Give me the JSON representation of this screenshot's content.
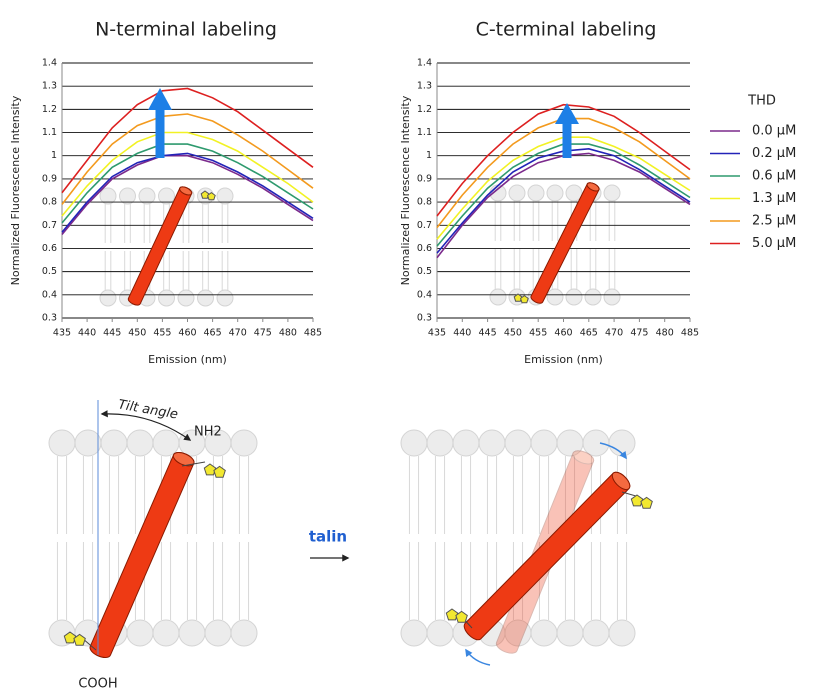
{
  "chart_data": [
    {
      "type": "line",
      "title": "N-terminal labeling",
      "x_label": "Emission (nm)",
      "y_label": "Normalized Fluorescence Intensity",
      "x": [
        435,
        440,
        445,
        450,
        455,
        460,
        465,
        470,
        475,
        480,
        485
      ],
      "xlim": [
        435,
        485
      ],
      "xticks": [
        435,
        440,
        445,
        450,
        455,
        460,
        465,
        470,
        475,
        480,
        485
      ],
      "ylim": [
        0.3,
        1.4
      ],
      "yticks": [
        0.3,
        0.4,
        0.5,
        0.6,
        0.7,
        0.8,
        0.9,
        1,
        1.1,
        1.2,
        1.3,
        1.4
      ],
      "grid": true,
      "series": [
        {
          "color": "#7b2a8c",
          "values": [
            0.66,
            0.79,
            0.9,
            0.96,
            1.0,
            1.0,
            0.97,
            0.92,
            0.86,
            0.79,
            0.72
          ]
        },
        {
          "color": "#2323b8",
          "values": [
            0.67,
            0.8,
            0.91,
            0.97,
            1.0,
            1.01,
            0.98,
            0.93,
            0.87,
            0.8,
            0.73
          ]
        },
        {
          "color": "#2e9a6e",
          "values": [
            0.71,
            0.84,
            0.95,
            1.01,
            1.05,
            1.05,
            1.02,
            0.97,
            0.91,
            0.84,
            0.77
          ]
        },
        {
          "color": "#f2f224",
          "values": [
            0.74,
            0.87,
            0.98,
            1.06,
            1.1,
            1.1,
            1.07,
            1.02,
            0.95,
            0.88,
            0.8
          ]
        },
        {
          "color": "#f39a1e",
          "values": [
            0.79,
            0.93,
            1.05,
            1.13,
            1.17,
            1.18,
            1.15,
            1.09,
            1.02,
            0.94,
            0.86
          ]
        },
        {
          "color": "#dd2020",
          "values": [
            0.84,
            0.98,
            1.12,
            1.22,
            1.28,
            1.29,
            1.25,
            1.19,
            1.11,
            1.03,
            0.95
          ]
        }
      ]
    },
    {
      "type": "line",
      "title": "C-terminal labeling",
      "x_label": "Emission (nm)",
      "y_label": "Normalized Fluorescence Intensity",
      "x": [
        435,
        440,
        445,
        450,
        455,
        460,
        465,
        470,
        475,
        480,
        485
      ],
      "xlim": [
        435,
        485
      ],
      "xticks": [
        435,
        440,
        445,
        450,
        455,
        460,
        465,
        470,
        475,
        480,
        485
      ],
      "ylim": [
        0.3,
        1.4
      ],
      "yticks": [
        0.3,
        0.4,
        0.5,
        0.6,
        0.7,
        0.8,
        0.9,
        1,
        1.1,
        1.2,
        1.3,
        1.4
      ],
      "grid": true,
      "legend_title": "THD",
      "legend": "right",
      "series": [
        {
          "name": "0.0 µM",
          "color": "#7b2a8c",
          "values": [
            0.56,
            0.7,
            0.82,
            0.91,
            0.97,
            1.0,
            1.01,
            0.98,
            0.93,
            0.86,
            0.79
          ]
        },
        {
          "name": "0.2 µM",
          "color": "#2323b8",
          "values": [
            0.58,
            0.71,
            0.83,
            0.93,
            0.99,
            1.02,
            1.03,
            1.0,
            0.94,
            0.87,
            0.8
          ]
        },
        {
          "name": "0.6 µM",
          "color": "#2e9a6e",
          "values": [
            0.61,
            0.74,
            0.86,
            0.95,
            1.01,
            1.05,
            1.05,
            1.02,
            0.96,
            0.89,
            0.82
          ]
        },
        {
          "name": "1.3 µM",
          "color": "#f2f224",
          "values": [
            0.64,
            0.77,
            0.89,
            0.98,
            1.04,
            1.08,
            1.08,
            1.04,
            0.99,
            0.92,
            0.85
          ]
        },
        {
          "name": "2.5 µM",
          "color": "#f39a1e",
          "values": [
            0.69,
            0.83,
            0.95,
            1.05,
            1.12,
            1.16,
            1.16,
            1.12,
            1.06,
            0.98,
            0.9
          ]
        },
        {
          "name": "5.0 µM",
          "color": "#dd2020",
          "values": [
            0.74,
            0.88,
            1.0,
            1.1,
            1.18,
            1.22,
            1.21,
            1.17,
            1.1,
            1.02,
            0.94
          ]
        }
      ]
    }
  ],
  "diagram": {
    "tilt_label": "Tilt angle",
    "n_terminus": "NH2",
    "c_terminus": "COOH",
    "arrow_label": "talin"
  }
}
